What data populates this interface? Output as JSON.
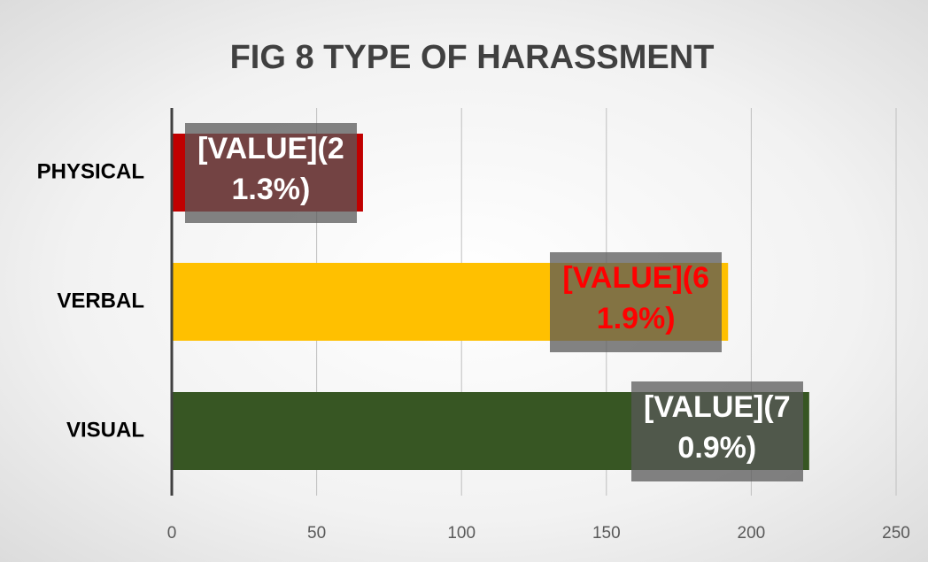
{
  "chart_data": {
    "type": "bar",
    "orientation": "horizontal",
    "title": "FIG 8 TYPE OF HARASSMENT",
    "categories": [
      "PHYSICAL",
      "VERBAL",
      "VISUAL"
    ],
    "values": [
      66,
      192,
      220
    ],
    "value_labels": [
      "[VALUE](21.3%)",
      "[VALUE](61.9%)",
      "[VALUE](70.9%)"
    ],
    "colors": [
      "#c00000",
      "#ffc000",
      "#375623"
    ],
    "value_label_colors": [
      "#ffffff",
      "#ff0000",
      "#ffffff"
    ],
    "xlim": [
      0,
      250
    ],
    "xticks": [
      0,
      50,
      100,
      150,
      200,
      250
    ],
    "grid": true
  }
}
